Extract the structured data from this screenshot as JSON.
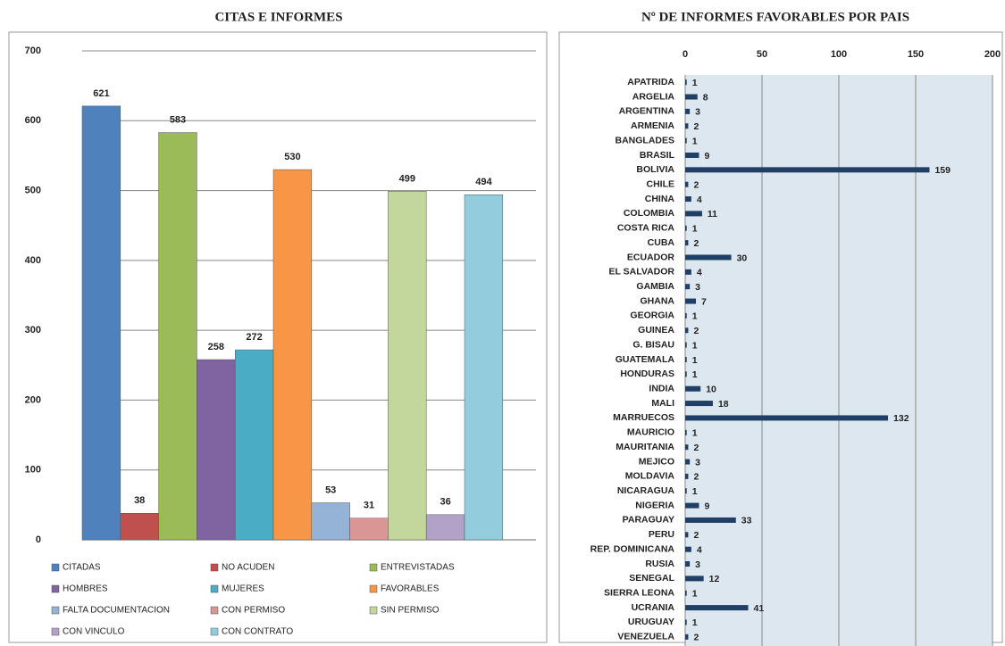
{
  "chart_data": [
    {
      "type": "bar",
      "title": "CITAS E INFORMES",
      "categories": [
        "CITADAS",
        "NO ACUDEN",
        "ENTREVISTADAS",
        "HOMBRES",
        "MUJERES",
        "FAVORABLES",
        "FALTA DOCUMENTACION",
        "CON PERMISO",
        "SIN PERMISO",
        "CON VINCULO",
        "CON CONTRATO"
      ],
      "values": [
        621,
        38,
        583,
        258,
        272,
        530,
        53,
        31,
        499,
        36,
        494
      ],
      "colors": [
        "#4f81bd",
        "#c0504d",
        "#9bbb59",
        "#8064a2",
        "#4bacc6",
        "#f79646",
        "#95b3d7",
        "#d99694",
        "#c3d69b",
        "#b3a2c7",
        "#93cddd"
      ],
      "ylim": [
        0,
        700
      ],
      "yticks": [
        0,
        100,
        200,
        300,
        400,
        500,
        600,
        700
      ],
      "grid": true,
      "legend": "bottom"
    },
    {
      "type": "barh",
      "title": "Nº DE INFORMES FAVORABLES POR PAIS",
      "categories": [
        "APATRIDA",
        "ARGELIA",
        "ARGENTINA",
        "ARMENIA",
        "BANGLADES",
        "BRASIL",
        "BOLIVIA",
        "CHILE",
        "CHINA",
        "COLOMBIA",
        "COSTA RICA",
        "CUBA",
        "ECUADOR",
        "EL SALVADOR",
        "GAMBIA",
        "GHANA",
        "GEORGIA",
        "GUINEA",
        "G. BISAU",
        "GUATEMALA",
        "HONDURAS",
        "INDIA",
        "MALI",
        "MARRUECOS",
        "MAURICIO",
        "MAURITANIA",
        "MEJICO",
        "MOLDAVIA",
        "NICARAGUA",
        "NIGERIA",
        "PARAGUAY",
        "PERU",
        "REP. DOMINICANA",
        "RUSIA",
        "SENEGAL",
        "SIERRA LEONA",
        "UCRANIA",
        "URUGUAY",
        "VENEZUELA"
      ],
      "values": [
        1,
        8,
        3,
        2,
        1,
        9,
        159,
        2,
        4,
        11,
        1,
        2,
        30,
        4,
        3,
        7,
        1,
        2,
        1,
        1,
        1,
        10,
        18,
        132,
        1,
        2,
        3,
        2,
        1,
        9,
        33,
        2,
        4,
        3,
        12,
        1,
        41,
        1,
        2
      ],
      "color": "#1f3f66",
      "xlim": [
        0,
        200
      ],
      "xticks": [
        0,
        50,
        100,
        150,
        200
      ],
      "grid": true
    }
  ]
}
